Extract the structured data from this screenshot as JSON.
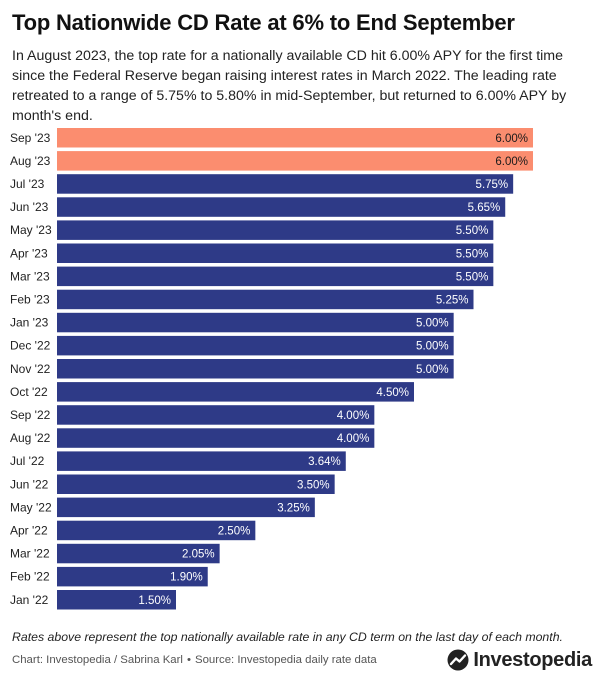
{
  "title": "Top Nationwide CD Rate at 6% to End September",
  "subtitle": "In August 2023, the top rate for a nationally available CD hit 6.00% APY for the first time since the Federal Reserve began raising interest rates in March 2022. The leading rate retreated to a range of 5.75% to 5.80% in mid-September, but returned to 6.00% APY by month's end.",
  "footnote": "Rates above represent the top nationally available rate in any CD term on the last day of each month.",
  "credit": {
    "chart": "Chart: Investopedia / Sabrina Karl",
    "source": "Source: Investopedia daily rate data",
    "separator": "•"
  },
  "logo": {
    "text": "Investopedia",
    "icon": "investopedia-logo-icon"
  },
  "colors": {
    "highlight": "#fb8d6f",
    "base": "#2e3a87",
    "label_dark": "#1a1a1a",
    "label_light": "#ffffff"
  },
  "chart_data": {
    "type": "bar",
    "orientation": "horizontal",
    "categories": [
      "Sep '23",
      "Aug '23",
      "Jul '23",
      "Jun '23",
      "May '23",
      "Apr '23",
      "Mar '23",
      "Feb '23",
      "Jan '23",
      "Dec '22",
      "Nov '22",
      "Oct '22",
      "Sep '22",
      "Aug '22",
      "Jul '22",
      "Jun '22",
      "May '22",
      "Apr '22",
      "Mar '22",
      "Feb '22",
      "Jan '22"
    ],
    "values": [
      6.0,
      6.0,
      5.75,
      5.65,
      5.5,
      5.5,
      5.5,
      5.25,
      5.0,
      5.0,
      5.0,
      4.5,
      4.0,
      4.0,
      3.64,
      3.5,
      3.25,
      2.5,
      2.05,
      1.9,
      1.5
    ],
    "labels": [
      "6.00%",
      "6.00%",
      "5.75%",
      "5.65%",
      "5.50%",
      "5.50%",
      "5.50%",
      "5.25%",
      "5.00%",
      "5.00%",
      "5.00%",
      "4.50%",
      "4.00%",
      "4.00%",
      "3.64%",
      "3.50%",
      "3.25%",
      "2.50%",
      "2.05%",
      "1.90%",
      "1.50%"
    ],
    "highlighted": [
      "Sep '23",
      "Aug '23"
    ],
    "xlim": [
      0,
      6.0
    ],
    "grid": false,
    "legend": "none",
    "title": "Top Nationwide CD Rate at 6% to End September",
    "xlabel": "",
    "ylabel": ""
  }
}
